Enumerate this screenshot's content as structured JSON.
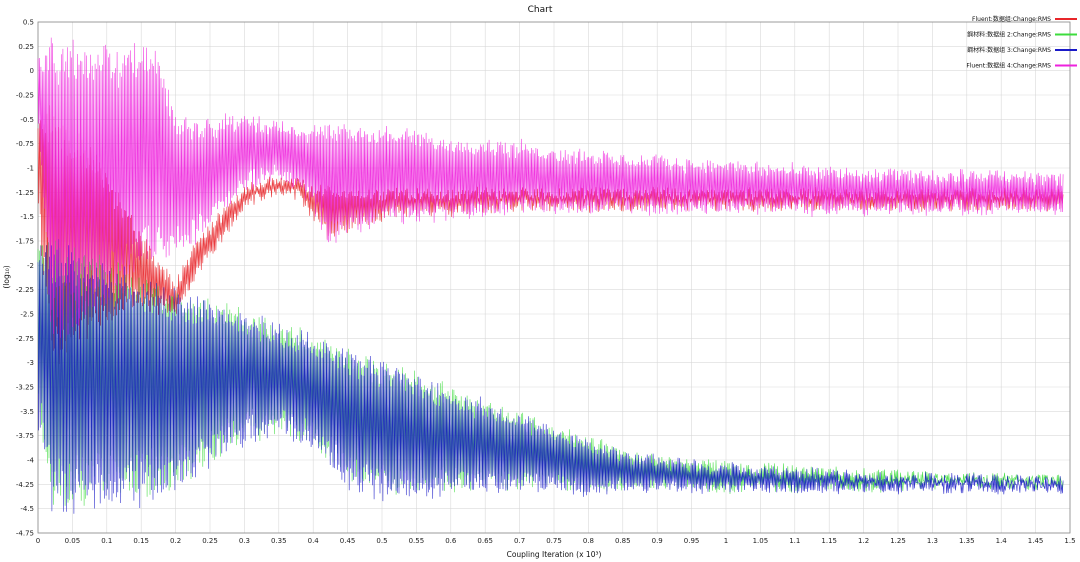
{
  "chart_data": {
    "type": "line",
    "title": "Chart",
    "xlabel": "Coupling Iteration (x 10³)",
    "ylabel": "(log₁₀)",
    "xlim": [
      0,
      1.5
    ],
    "ylim": [
      -4.75,
      0.5
    ],
    "grid": true,
    "legend_position": "top-right",
    "x_ticks": [
      "0",
      "0.05",
      "0.1",
      "0.15",
      "0.2",
      "0.25",
      "0.3",
      "0.35",
      "0.4",
      "0.45",
      "0.5",
      "0.55",
      "0.6",
      "0.65",
      "0.7",
      "0.75",
      "0.8",
      "0.85",
      "0.9",
      "0.95",
      "1",
      "1.05",
      "1.1",
      "1.15",
      "1.2",
      "1.25",
      "1.3",
      "1.35",
      "1.4",
      "1.45",
      "1.5"
    ],
    "y_ticks": [
      "0.5",
      "0.25",
      "0",
      "-0.25",
      "-0.5",
      "-0.75",
      "-1",
      "-1.25",
      "-1.5",
      "-1.75",
      "-2",
      "-2.25",
      "-2.5",
      "-2.75",
      "-3",
      "-3.25",
      "-3.5",
      "-3.75",
      "-4",
      "-4.25",
      "-4.5",
      "-4.75"
    ],
    "series": [
      {
        "name": "Fluent:数据组:Change:RMS",
        "color": "#e8262a",
        "x": [
          0,
          0.02,
          0.05,
          0.08,
          0.1,
          0.12,
          0.15,
          0.18,
          0.2,
          0.22,
          0.25,
          0.28,
          0.3,
          0.32,
          0.35,
          0.38,
          0.4,
          0.42,
          0.45,
          0.5,
          0.55,
          0.6,
          0.7,
          0.8,
          0.9,
          1.0,
          1.1,
          1.2,
          1.3,
          1.4,
          1.49
        ],
        "peak": [
          -0.5,
          -0.3,
          -0.6,
          -0.8,
          -1.0,
          -1.3,
          -1.7,
          -2.0,
          -2.2,
          -1.9,
          -1.6,
          -1.35,
          -1.2,
          -1.15,
          -1.1,
          -1.15,
          -1.2,
          -1.2,
          -1.25,
          -1.25,
          -1.25,
          -1.25,
          -1.25,
          -1.25,
          -1.25,
          -1.25,
          -1.25,
          -1.25,
          -1.25,
          -1.25,
          -1.25
        ],
        "trough": [
          -1.5,
          -3.1,
          -2.9,
          -2.7,
          -2.6,
          -2.5,
          -2.4,
          -2.5,
          -2.5,
          -2.2,
          -1.9,
          -1.6,
          -1.4,
          -1.3,
          -1.25,
          -1.3,
          -1.5,
          -1.7,
          -1.65,
          -1.5,
          -1.45,
          -1.45,
          -1.4,
          -1.4,
          -1.4,
          -1.4,
          -1.4,
          -1.4,
          -1.4,
          -1.4,
          -1.4
        ]
      },
      {
        "name": "鋼材料:数据组 2:Change:RMS",
        "color": "#3ddc3d",
        "x": [
          0,
          0.02,
          0.05,
          0.1,
          0.15,
          0.2,
          0.25,
          0.3,
          0.35,
          0.4,
          0.45,
          0.5,
          0.55,
          0.6,
          0.65,
          0.7,
          0.75,
          0.8,
          0.85,
          0.9,
          0.95,
          1.0,
          1.05,
          1.1,
          1.15,
          1.2,
          1.3,
          1.4,
          1.49
        ],
        "peak": [
          -1.65,
          -1.72,
          -1.8,
          -1.95,
          -2.1,
          -2.25,
          -2.36,
          -2.47,
          -2.6,
          -2.73,
          -2.87,
          -3.0,
          -3.13,
          -3.27,
          -3.4,
          -3.53,
          -3.67,
          -3.8,
          -3.9,
          -3.98,
          -4.02,
          -4.05,
          -4.08,
          -4.1,
          -4.12,
          -4.14,
          -4.16,
          -4.18,
          -4.2
        ],
        "trough": [
          -3.4,
          -4.5,
          -4.45,
          -4.4,
          -4.4,
          -4.3,
          -4.0,
          -3.8,
          -3.7,
          -3.8,
          -4.2,
          -4.3,
          -4.35,
          -4.3,
          -4.25,
          -4.3,
          -4.25,
          -4.3,
          -4.3,
          -4.25,
          -4.3,
          -4.3,
          -4.25,
          -4.3,
          -4.25,
          -4.3,
          -4.25,
          -4.25,
          -4.25
        ]
      },
      {
        "name": "鋼材料:数据组 3:Change:RMS",
        "color": "#1a1ac8",
        "x": [
          0,
          0.02,
          0.05,
          0.1,
          0.15,
          0.2,
          0.25,
          0.3,
          0.35,
          0.4,
          0.45,
          0.5,
          0.55,
          0.6,
          0.65,
          0.7,
          0.75,
          0.8,
          0.85,
          0.9,
          0.95,
          1.0,
          1.05,
          1.1,
          1.15,
          1.2,
          1.3,
          1.4,
          1.49
        ],
        "peak": [
          -1.7,
          -1.75,
          -1.82,
          -1.97,
          -2.12,
          -2.27,
          -2.38,
          -2.49,
          -2.62,
          -2.75,
          -2.89,
          -3.02,
          -3.15,
          -3.29,
          -3.42,
          -3.55,
          -3.69,
          -3.82,
          -3.92,
          -4.0,
          -4.04,
          -4.07,
          -4.1,
          -4.12,
          -4.14,
          -4.16,
          -4.18,
          -4.2,
          -4.22
        ],
        "trough": [
          -3.6,
          -4.6,
          -4.55,
          -4.5,
          -4.45,
          -4.35,
          -4.05,
          -3.85,
          -3.75,
          -3.85,
          -4.3,
          -4.4,
          -4.4,
          -4.35,
          -4.3,
          -4.3,
          -4.3,
          -4.35,
          -4.3,
          -4.3,
          -4.3,
          -4.3,
          -4.3,
          -4.3,
          -4.3,
          -4.3,
          -4.3,
          -4.3,
          -4.3
        ]
      },
      {
        "name": "Fluent:数据组 4:Change:RMS",
        "color": "#ee22dd",
        "x": [
          0,
          0.02,
          0.05,
          0.08,
          0.1,
          0.12,
          0.15,
          0.18,
          0.2,
          0.22,
          0.25,
          0.28,
          0.3,
          0.32,
          0.35,
          0.38,
          0.4,
          0.42,
          0.45,
          0.5,
          0.55,
          0.6,
          0.7,
          0.8,
          0.9,
          1.0,
          1.1,
          1.2,
          1.3,
          1.4,
          1.49
        ],
        "peak": [
          0.2,
          0.3,
          0.35,
          0.3,
          0.25,
          0.25,
          0.3,
          0.1,
          -0.45,
          -0.5,
          -0.5,
          -0.48,
          -0.45,
          -0.5,
          -0.55,
          -0.6,
          -0.6,
          -0.55,
          -0.55,
          -0.6,
          -0.65,
          -0.7,
          -0.75,
          -0.85,
          -0.9,
          -0.95,
          -1.0,
          -1.05,
          -1.05,
          -1.05,
          -1.1
        ],
        "trough": [
          -0.5,
          -2.9,
          -2.7,
          -2.5,
          -2.4,
          -2.2,
          -2.0,
          -2.0,
          -1.9,
          -1.8,
          -1.6,
          -1.4,
          -1.25,
          -1.15,
          -1.1,
          -1.2,
          -1.4,
          -1.8,
          -1.7,
          -1.55,
          -1.55,
          -1.5,
          -1.45,
          -1.45,
          -1.45,
          -1.45,
          -1.45,
          -1.45,
          -1.45,
          -1.45,
          -1.45
        ]
      }
    ]
  }
}
